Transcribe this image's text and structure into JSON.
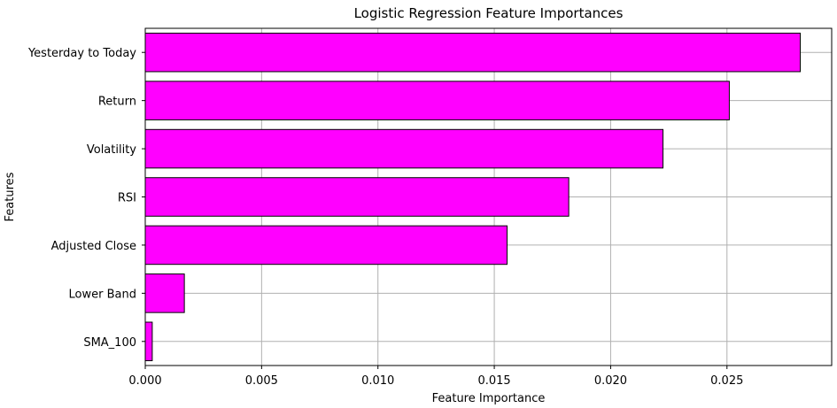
{
  "chart_data": {
    "type": "bar",
    "orientation": "horizontal",
    "title": "Logistic Regression Feature Importances",
    "xlabel": "Feature Importance",
    "ylabel": "Features",
    "categories": [
      "Yesterday to Today",
      "Return",
      "Volatility",
      "RSI",
      "Adjusted Close",
      "Lower Band",
      "SMA_100"
    ],
    "values": [
      0.02815,
      0.0251,
      0.02225,
      0.0182,
      0.01555,
      0.00168,
      0.0003
    ],
    "xlim": [
      0,
      0.0295
    ],
    "xticks": [
      0.0,
      0.005,
      0.01,
      0.015,
      0.02,
      0.025
    ],
    "xtick_labels": [
      "0.000",
      "0.005",
      "0.010",
      "0.015",
      "0.020",
      "0.025"
    ],
    "grid": true,
    "bar_color": "#ff00ff",
    "edge_color": "#000000",
    "grid_color": "#b0b0b0"
  }
}
